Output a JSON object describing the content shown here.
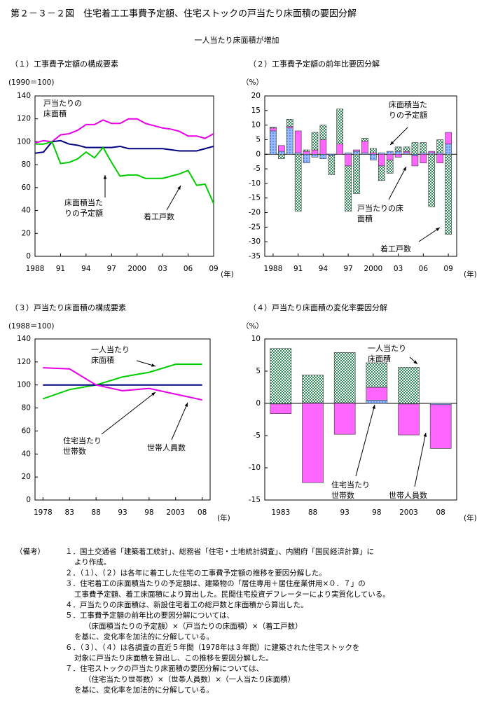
{
  "header": {
    "title": "第２－３－２図　住宅着工工事費予定額、住宅ストックの戸当たり床面積の要因分解",
    "subtitle": "一人当たり床面積が増加"
  },
  "chart_data": [
    {
      "type": "line",
      "label": "（１）工事費予定額の構成要素",
      "y_unit": "(1990＝100)",
      "x_unit": "(年)",
      "x": [
        1988,
        1989,
        1990,
        1991,
        1992,
        1993,
        1994,
        1995,
        1996,
        1997,
        1998,
        1999,
        2000,
        2001,
        2002,
        2003,
        2004,
        2005,
        2006,
        2007,
        2008,
        2009
      ],
      "xlim": [
        1988,
        2009
      ],
      "xticks": [
        1988,
        {
          "value": 1991,
          "label": "91"
        },
        {
          "value": 1994,
          "label": "94"
        },
        {
          "value": 1997,
          "label": "97"
        },
        2000,
        {
          "value": 2003,
          "label": "03"
        },
        {
          "value": 2006,
          "label": "06"
        },
        {
          "value": 2009,
          "label": "09"
        }
      ],
      "ylim": [
        0,
        140
      ],
      "yticks": [
        0,
        20,
        40,
        60,
        80,
        100,
        120,
        140
      ],
      "series": [
        {
          "name": "戸当たりの\n床面積",
          "color": "#e600e6",
          "values": [
            99,
            101,
            100,
            106,
            107,
            110,
            115,
            115,
            119,
            116,
            116,
            120,
            120,
            116,
            114,
            112,
            111,
            109,
            105,
            105,
            103,
            107
          ]
        },
        {
          "name": "床面積当た\nりの予定額",
          "color": "#000080",
          "values": [
            90,
            91,
            100,
            101,
            98,
            97,
            95,
            95,
            95,
            95,
            96,
            94,
            94,
            94,
            94,
            94,
            93,
            92,
            92,
            92,
            94,
            96
          ]
        },
        {
          "name": "着工戸数",
          "color": "#00cc00",
          "values": [
            98,
            98,
            100,
            81,
            82,
            85,
            91,
            86,
            95,
            82,
            70,
            71,
            71,
            68,
            68,
            68,
            70,
            72,
            75,
            62,
            63,
            46
          ]
        }
      ]
    },
    {
      "type": "stacked-bar",
      "label": "（２）工事費予定額の前年比要因分解",
      "y_unit": "（%）",
      "x_unit": "(年)",
      "x": [
        1988,
        1989,
        1990,
        1991,
        1992,
        1993,
        1994,
        1995,
        1996,
        1997,
        1998,
        1999,
        2000,
        2001,
        2002,
        2003,
        2004,
        2005,
        2006,
        2007,
        2008,
        2009
      ],
      "xlim": [
        1987,
        2010
      ],
      "xticks": [
        1988,
        {
          "value": 1991,
          "label": "91"
        },
        {
          "value": 1994,
          "label": "94"
        },
        {
          "value": 1997,
          "label": "97"
        },
        2000,
        {
          "value": 2003,
          "label": "03"
        },
        {
          "value": 2006,
          "label": "06"
        },
        {
          "value": 2009,
          "label": "09"
        }
      ],
      "ylim": [
        -35,
        20
      ],
      "yticks": [
        -35,
        -30,
        -25,
        -20,
        -15,
        -10,
        -5,
        0,
        5,
        10,
        15,
        20
      ],
      "series": [
        {
          "name": "床面積当た\nりの予定額",
          "color": "#3366ff",
          "pattern": "dots",
          "values": [
            8,
            1,
            9,
            0.5,
            -3,
            -1,
            -1.5,
            -0.5,
            0,
            0.5,
            1,
            0.5,
            -2,
            0.5,
            1,
            1,
            0.5,
            -0.5,
            0.5,
            0.5,
            0.5,
            3.5
          ]
        },
        {
          "name": "戸当たりの床\n面積",
          "color": "#ff66ff",
          "pattern": "solid",
          "values": [
            1,
            2,
            0.5,
            7.5,
            1,
            1.5,
            5,
            0,
            3.5,
            -4,
            0.5,
            4,
            0.5,
            -4,
            -2,
            -1,
            0.5,
            -3.5,
            -3,
            0.5,
            -3,
            4
          ]
        },
        {
          "name": "着工戸数",
          "color": "#2e8b57",
          "pattern": "checker",
          "values": [
            0.3,
            -1.5,
            2.5,
            -19.5,
            0.5,
            6,
            5,
            -6.5,
            12,
            -15.5,
            -13.5,
            1,
            1.5,
            -5,
            -4.5,
            1.5,
            1.5,
            4,
            3.5,
            -18,
            4.5,
            -27.5
          ]
        }
      ]
    },
    {
      "type": "line",
      "label": "（３）戸当たり床面積の構成要素",
      "y_unit": "(1988＝100)",
      "x_unit": "(年)",
      "x": [
        1978,
        1983,
        1988,
        1993,
        1998,
        2003,
        2008
      ],
      "xlim": [
        1976.5,
        2009.5
      ],
      "xticks": [
        1978,
        {
          "value": 1983,
          "label": "83"
        },
        {
          "value": 1988,
          "label": "88"
        },
        {
          "value": 1993,
          "label": "93"
        },
        {
          "value": 1998,
          "label": "98"
        },
        2003,
        {
          "value": 2008,
          "label": "08"
        }
      ],
      "ylim": [
        0,
        140
      ],
      "yticks": [
        0,
        20,
        40,
        60,
        80,
        100,
        120,
        140
      ],
      "series": [
        {
          "name": "一人当たり\n床面積",
          "color": "#00cc00",
          "values": [
            88,
            96,
            100,
            107,
            111,
            118,
            118
          ]
        },
        {
          "name": "住宅当たり\n世帯数",
          "color": "#000080",
          "values": [
            100,
            100,
            100,
            100,
            100,
            100,
            100
          ]
        },
        {
          "name": "世帯人員数",
          "color": "#e600e6",
          "values": [
            115,
            114,
            100,
            95,
            97,
            92,
            87
          ]
        }
      ]
    },
    {
      "type": "stacked-bar",
      "label": "（４）戸当たり床面積の変化率要因分解",
      "y_unit": "（%）",
      "x_unit": "(年)",
      "categories": [
        "1983",
        "88",
        "93",
        "98",
        "2003",
        "08"
      ],
      "ylim": [
        -15,
        10
      ],
      "yticks": [
        -15,
        -10,
        -5,
        0,
        5,
        10
      ],
      "series": [
        {
          "name": "住宅当たり\n世帯数",
          "color": "#3366ff",
          "pattern": "dots",
          "values": [
            -0.1,
            0.1,
            0.1,
            0.5,
            -0.1,
            -0.2
          ]
        },
        {
          "name": "世帯人員数",
          "color": "#ff66ff",
          "pattern": "solid",
          "values": [
            -1.5,
            -12.3,
            -4.8,
            2,
            -4.8,
            -6.8
          ]
        },
        {
          "name": "一人当たり\n床面積",
          "color": "#2e8b57",
          "pattern": "checker",
          "values": [
            8.5,
            4.3,
            7.8,
            3.8,
            5.6,
            0
          ]
        }
      ]
    }
  ],
  "notes": {
    "label": "（備考）",
    "lines": [
      "１．国土交通省「建築着工統計」、総務省「住宅・土地統計調査」、内閣府「国民経済計算」に",
      "より作成。",
      "２．（１）、（２）は各年に着工した住宅の工事費予定額の推移を要因分解した。",
      "３．住宅着工の床面積当たりの予定額は、建築物の「居住専用＋居住産業併用×０．７」の",
      "工事費予定額、着工床面積により算出した。民間住宅投資デフレーターにより実質化している。",
      "４．戸当たりの床面積は、新設住宅着工の総戸数と床面積から算出した。",
      "５．工事費予定額の前年比の要因分解については、",
      "（床面積当たりの予定額）×（戸当たりの床面積）×（着工戸数）",
      "を基に、変化率を加法的に分解している。",
      "６．（３）、（４）は各調査の直近５年間（1978年は３年間）に建築された住宅ストックを",
      "対象に戸当たり床面積を算出し、この推移を要因分解した。",
      "７．住宅ストックの戸当たり床面積の要因分解については、",
      "（住宅当たり世帯数）×（世帯人員数）×（一人当たり床面積）",
      "を基に、変化率を加法的に分解している。"
    ]
  }
}
